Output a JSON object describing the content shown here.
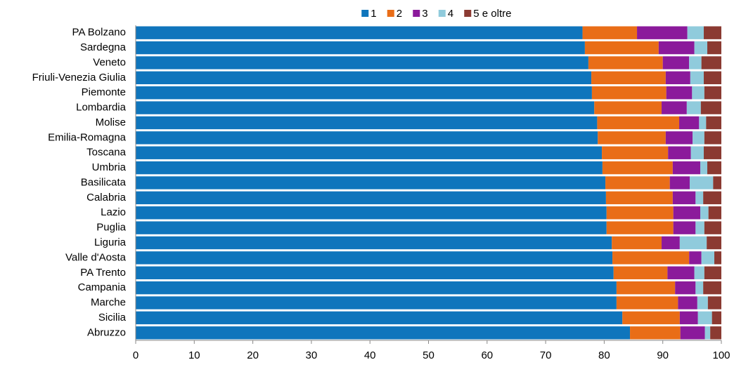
{
  "chart_data": {
    "type": "stacked_barh",
    "categories": [
      "PA Bolzano",
      "Sardegna",
      "Veneto",
      "Friuli-Venezia Giulia",
      "Piemonte",
      "Lombardia",
      "Molise",
      "Emilia-Romagna",
      "Toscana",
      "Umbria",
      "Basilicata",
      "Calabria",
      "Lazio",
      "Puglia",
      "Liguria",
      "Valle d'Aosta",
      "PA Trento",
      "Campania",
      "Marche",
      "Sicilia",
      "Abruzzo"
    ],
    "series": [
      {
        "name": "1",
        "color": "#0f75bc",
        "values": [
          76.3,
          76.7,
          77.3,
          77.8,
          77.9,
          78.3,
          78.8,
          78.9,
          79.6,
          79.7,
          80.2,
          80.3,
          80.4,
          80.4,
          81.3,
          81.4,
          81.6,
          82.1,
          82.1,
          83.1,
          84.4
        ]
      },
      {
        "name": "2",
        "color": "#e96d17",
        "values": [
          9.3,
          12.6,
          12.7,
          12.7,
          12.7,
          11.5,
          14.0,
          11.6,
          11.3,
          12.0,
          11.0,
          11.4,
          11.4,
          11.4,
          8.5,
          13.1,
          9.2,
          10.0,
          10.5,
          9.8,
          8.6
        ]
      },
      {
        "name": "3",
        "color": "#8b1a9b",
        "values": [
          8.6,
          6.1,
          4.5,
          4.2,
          4.4,
          4.3,
          3.4,
          4.6,
          3.9,
          4.7,
          3.4,
          3.9,
          4.6,
          3.8,
          3.1,
          2.1,
          4.6,
          3.5,
          3.3,
          3.1,
          4.2
        ]
      },
      {
        "name": "4",
        "color": "#90cbdc",
        "values": [
          2.8,
          2.2,
          2.1,
          2.3,
          2.1,
          2.4,
          1.2,
          2.0,
          2.2,
          1.2,
          4.0,
          1.3,
          1.4,
          1.5,
          4.6,
          2.2,
          1.7,
          1.3,
          1.8,
          2.4,
          0.9
        ]
      },
      {
        "name": "5 e oltre",
        "color": "#8b3a32",
        "values": [
          3.0,
          2.4,
          3.4,
          3.0,
          2.9,
          3.5,
          2.6,
          2.9,
          3.0,
          2.4,
          1.4,
          3.1,
          2.2,
          2.9,
          2.5,
          1.2,
          2.9,
          3.1,
          2.3,
          1.6,
          1.9
        ]
      }
    ],
    "xlim": [
      0,
      100
    ],
    "xticks": [
      0,
      10,
      20,
      30,
      40,
      50,
      60,
      70,
      80,
      90,
      100
    ],
    "legend": "top"
  }
}
